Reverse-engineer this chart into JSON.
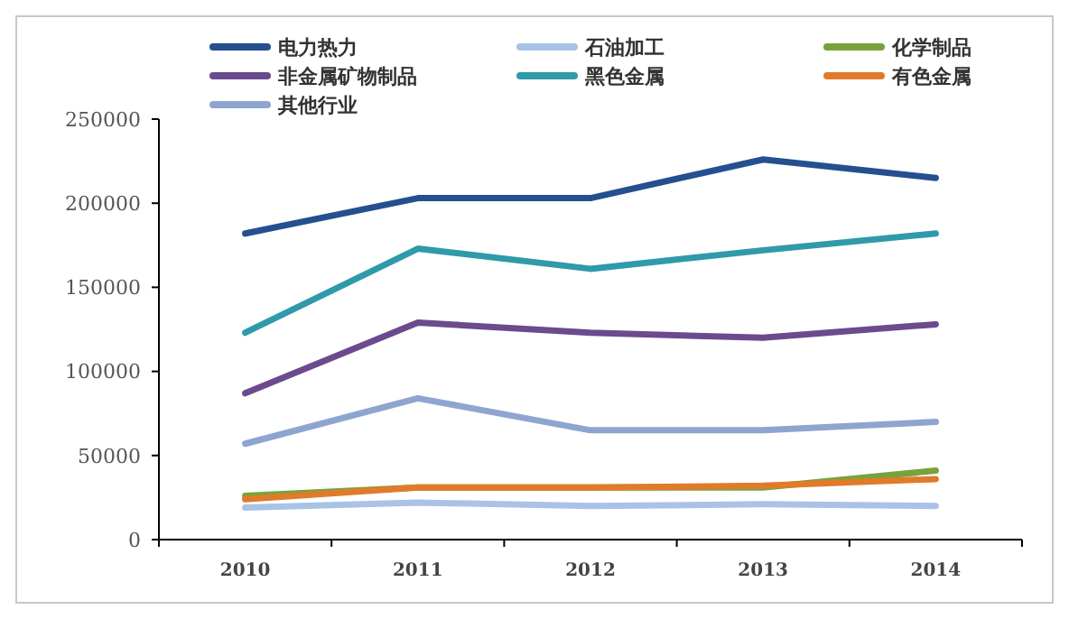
{
  "chart_data": {
    "type": "line",
    "categories": [
      "2010",
      "2011",
      "2012",
      "2013",
      "2014"
    ],
    "ylim": [
      0,
      250000
    ],
    "yticks": [
      0,
      50000,
      100000,
      150000,
      200000,
      250000
    ],
    "grid": false,
    "legend": "top",
    "marker": "none",
    "line_style": "solid",
    "series": [
      {
        "name": "电力热力",
        "color": "#254f8f",
        "values": [
          182000,
          203000,
          203000,
          226000,
          215000
        ]
      },
      {
        "name": "石油加工",
        "color": "#a9c3e6",
        "values": [
          19000,
          22000,
          20000,
          21000,
          20000
        ]
      },
      {
        "name": "化学制品",
        "color": "#77a33a",
        "values": [
          26000,
          31000,
          31000,
          31000,
          41000
        ]
      },
      {
        "name": "非金属矿物制品",
        "color": "#6b4a8e",
        "values": [
          87000,
          129000,
          123000,
          120000,
          128000
        ]
      },
      {
        "name": "黑色金属",
        "color": "#2f9aaa",
        "values": [
          123000,
          173000,
          161000,
          172000,
          182000
        ]
      },
      {
        "name": "有色金属",
        "color": "#e07b2c",
        "values": [
          24000,
          31000,
          31000,
          32000,
          36000
        ]
      },
      {
        "name": "其他行业",
        "color": "#8ea5cf",
        "values": [
          57000,
          84000,
          65000,
          65000,
          70000
        ]
      }
    ]
  }
}
